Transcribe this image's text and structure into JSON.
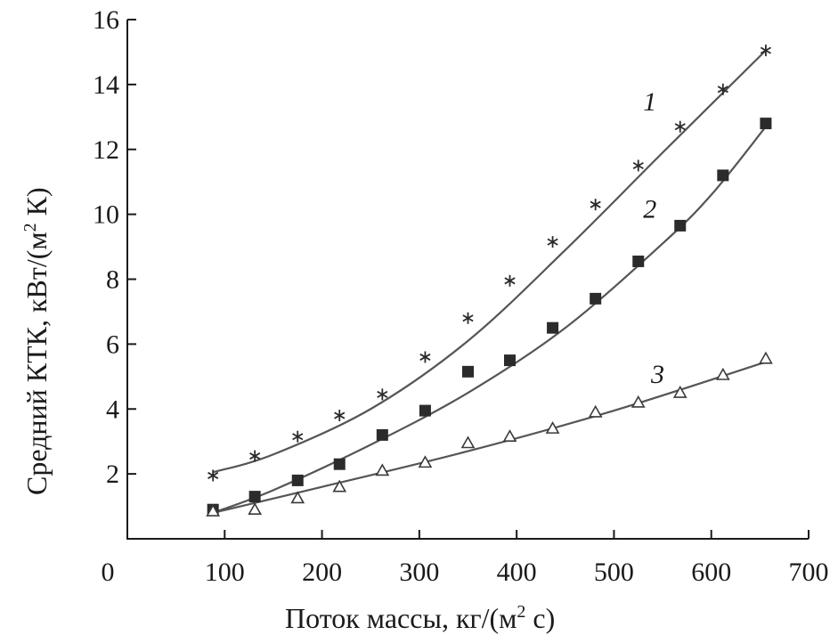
{
  "chart_data": {
    "type": "scatter",
    "title": "",
    "xlabel": "Поток массы, кг/(м",
    "xlabel_sup": "2",
    "xlabel_tail": " с)",
    "ylabel": "Средний КТК, кВт/(м",
    "ylabel_sup": "2",
    "ylabel_tail": " К)",
    "xlim": [
      0,
      700
    ],
    "ylim": [
      0,
      16
    ],
    "xticks": [
      0,
      100,
      200,
      300,
      400,
      500,
      600,
      700
    ],
    "yticks": [
      2,
      4,
      6,
      8,
      10,
      12,
      14,
      16
    ],
    "xtick_labels": [
      "0",
      "100",
      "200",
      "300",
      "400",
      "500",
      "600",
      "700"
    ],
    "ytick_labels": [
      "2",
      "4",
      "6",
      "8",
      "10",
      "12",
      "14",
      "16"
    ],
    "grid": false,
    "series": [
      {
        "name": "1",
        "marker": "asterisk",
        "label_at": [
          530,
          13.2
        ],
        "x": [
          88,
          131,
          175,
          218,
          262,
          306,
          350,
          393,
          437,
          481,
          525,
          568,
          612,
          656
        ],
        "y": [
          1.95,
          2.55,
          3.15,
          3.8,
          4.45,
          5.6,
          6.8,
          7.95,
          9.15,
          10.3,
          11.5,
          12.7,
          13.85,
          15.05
        ],
        "fit": [
          [
            88,
            2.05
          ],
          [
            150,
            2.6
          ],
          [
            250,
            4.0
          ],
          [
            350,
            6.1
          ],
          [
            450,
            8.9
          ],
          [
            550,
            11.9
          ],
          [
            656,
            15.05
          ]
        ]
      },
      {
        "name": "2",
        "marker": "filled-square",
        "label_at": [
          530,
          9.9
        ],
        "x": [
          88,
          131,
          175,
          218,
          262,
          306,
          350,
          393,
          437,
          481,
          525,
          568,
          612,
          656
        ],
        "y": [
          0.9,
          1.3,
          1.8,
          2.3,
          3.2,
          3.95,
          5.15,
          5.5,
          6.5,
          7.4,
          8.55,
          9.65,
          11.2,
          12.8
        ],
        "fit": [
          [
            88,
            0.8
          ],
          [
            150,
            1.5
          ],
          [
            250,
            2.9
          ],
          [
            350,
            4.5
          ],
          [
            450,
            6.5
          ],
          [
            550,
            9.1
          ],
          [
            600,
            10.6
          ],
          [
            656,
            12.7
          ]
        ]
      },
      {
        "name": "3",
        "marker": "open-triangle",
        "label_at": [
          538,
          4.8
        ],
        "x": [
          88,
          131,
          175,
          218,
          262,
          306,
          350,
          393,
          437,
          481,
          525,
          568,
          612,
          656
        ],
        "y": [
          0.85,
          0.9,
          1.25,
          1.6,
          2.1,
          2.35,
          2.95,
          3.15,
          3.4,
          3.9,
          4.2,
          4.5,
          5.05,
          5.55
        ],
        "fit": [
          [
            88,
            0.8
          ],
          [
            200,
            1.6
          ],
          [
            350,
            2.7
          ],
          [
            500,
            3.95
          ],
          [
            656,
            5.45
          ]
        ]
      }
    ]
  }
}
